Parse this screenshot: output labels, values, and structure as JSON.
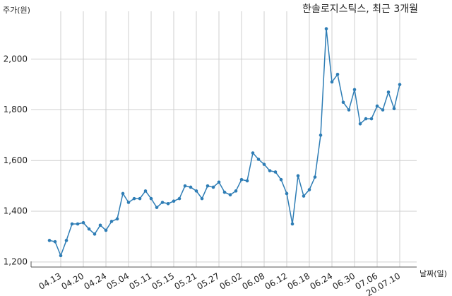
{
  "chart_data": {
    "type": "line",
    "title": "한솔로지스틱스, 최근 3개월",
    "y_label": "주가(원)",
    "x_label": "날짜(일)",
    "categories": [
      null,
      null,
      "04.13",
      null,
      null,
      null,
      "04.20",
      null,
      null,
      null,
      "04.24",
      null,
      null,
      null,
      "05.04",
      null,
      null,
      null,
      "05.11",
      null,
      null,
      null,
      "05.15",
      null,
      null,
      null,
      "05.21",
      null,
      null,
      null,
      "05.27",
      null,
      null,
      null,
      "06.02",
      null,
      null,
      null,
      "06.08",
      null,
      null,
      null,
      "06.12",
      null,
      null,
      null,
      "06.18",
      null,
      null,
      null,
      "06.24",
      null,
      null,
      null,
      "06.30",
      null,
      null,
      null,
      "07.06",
      null,
      null,
      null,
      "20.07.10"
    ],
    "series": [
      {
        "name": "주가",
        "color": "#2e7db5",
        "values": [
          1285,
          1280,
          1225,
          1285,
          1350,
          1350,
          1355,
          1330,
          1310,
          1345,
          1325,
          1360,
          1370,
          1470,
          1435,
          1450,
          1450,
          1480,
          1450,
          1415,
          1435,
          1430,
          1440,
          1450,
          1500,
          1495,
          1480,
          1450,
          1500,
          1495,
          1515,
          1475,
          1465,
          1480,
          1525,
          1520,
          1630,
          1605,
          1585,
          1560,
          1555,
          1525,
          1470,
          1350,
          1540,
          1460,
          1485,
          1535,
          1700,
          2120,
          1910,
          1940,
          1830,
          1800,
          1880,
          1745,
          1765,
          1765,
          1815,
          1800,
          1870,
          1805,
          1900
        ]
      }
    ],
    "ylim": [
      1180,
      2200
    ],
    "yticks": [
      {
        "value": 1200,
        "label": "1,200"
      },
      {
        "value": 1400,
        "label": "1,400"
      },
      {
        "value": 1600,
        "label": "1,600"
      },
      {
        "value": 1800,
        "label": "1,800"
      },
      {
        "value": 2000,
        "label": "2,000"
      }
    ],
    "grid": true
  }
}
